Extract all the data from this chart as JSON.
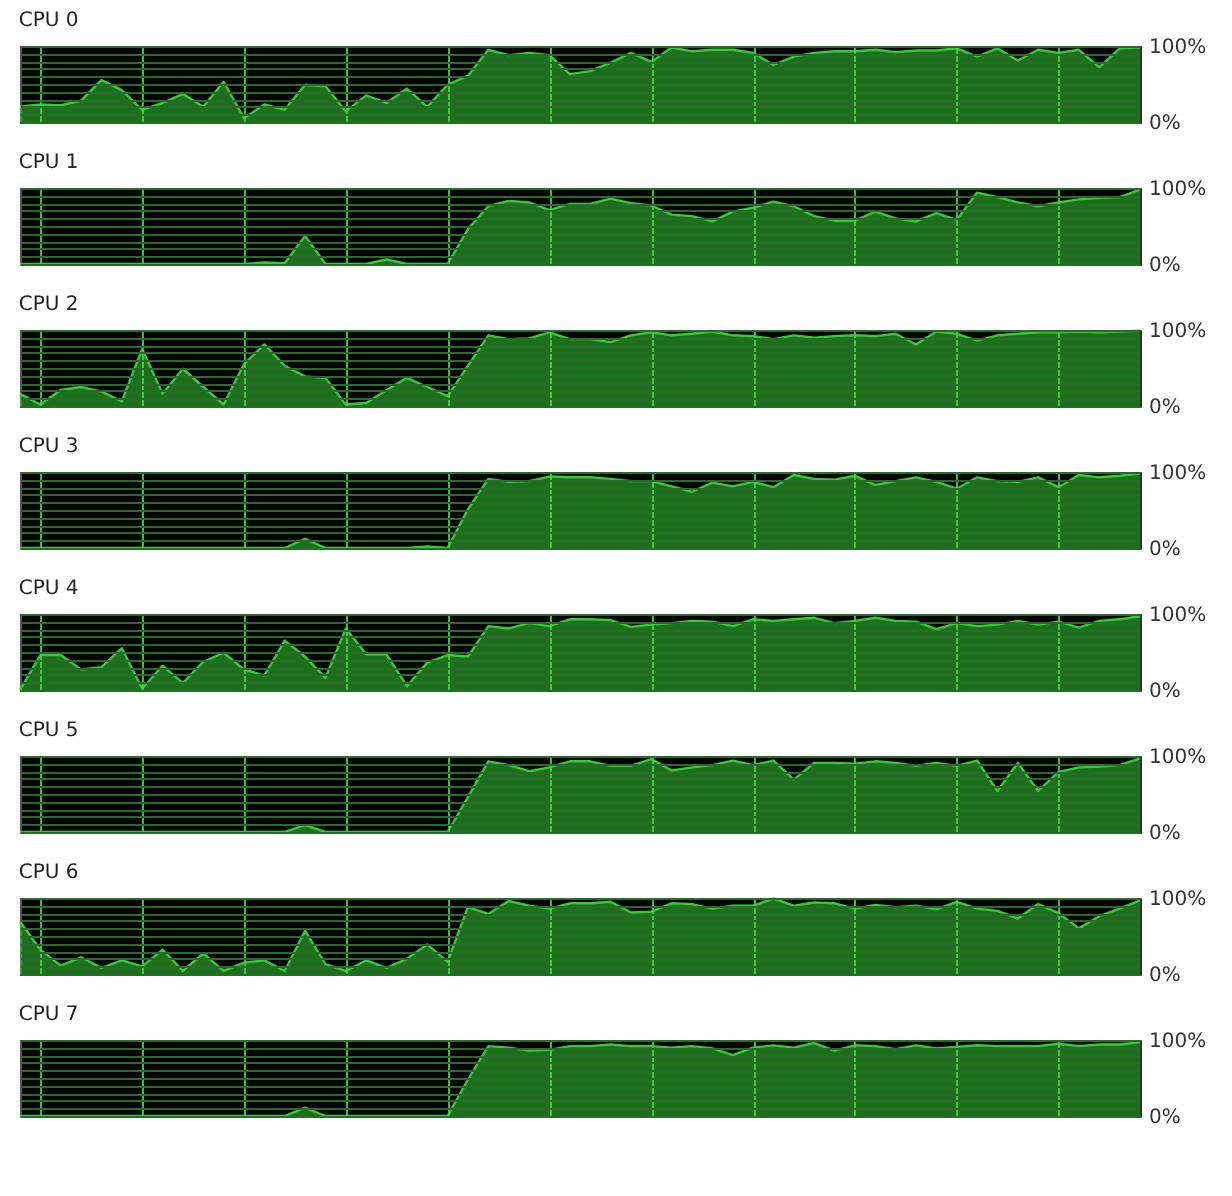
{
  "chart_data": [
    {
      "type": "area",
      "title": "CPU 0",
      "categories": [
        null,
        null,
        null,
        null,
        null,
        null,
        null,
        null,
        null,
        null,
        null,
        null,
        null,
        null,
        null,
        null,
        null,
        null,
        null,
        null,
        null,
        null,
        null,
        null,
        null,
        null,
        null,
        null,
        null,
        null,
        null,
        null,
        null,
        null,
        null,
        null,
        null,
        null,
        null,
        null,
        null,
        null,
        null,
        null,
        null,
        null,
        null,
        null,
        null,
        null,
        null,
        null,
        null,
        null,
        null,
        null
      ],
      "series": [
        {
          "color": "#33cc33",
          "values": [
            20,
            23,
            22,
            28,
            55,
            42,
            16,
            25,
            37,
            20,
            53,
            5,
            23,
            16,
            49,
            47,
            14,
            35,
            25,
            44,
            20,
            49,
            61,
            95,
            88,
            91,
            88,
            63,
            67,
            78,
            91,
            79,
            98,
            93,
            95,
            95,
            91,
            75,
            86,
            91,
            93,
            93,
            95,
            92,
            94,
            94,
            97,
            86,
            97,
            81,
            95,
            91,
            95,
            72,
            97,
            98
          ]
        }
      ],
      "ylim": [
        0,
        100
      ],
      "yticks": [
        {
          "value": 0,
          "label": "0%"
        },
        {
          "value": 10,
          "label": null
        },
        {
          "value": 20,
          "label": null
        },
        {
          "value": 30,
          "label": null
        },
        {
          "value": 40,
          "label": null
        },
        {
          "value": 50,
          "label": null
        },
        {
          "value": 60,
          "label": null
        },
        {
          "value": 70,
          "label": null
        },
        {
          "value": 80,
          "label": null
        },
        {
          "value": 90,
          "label": null
        },
        {
          "value": 100,
          "label": "100%"
        }
      ],
      "grid": true,
      "tick_labels": "y"
    },
    {
      "type": "area",
      "title": "CPU 1",
      "categories": [
        null,
        null,
        null,
        null,
        null,
        null,
        null,
        null,
        null,
        null,
        null,
        null,
        null,
        null,
        null,
        null,
        null,
        null,
        null,
        null,
        null,
        null,
        null,
        null,
        null,
        null,
        null,
        null,
        null,
        null,
        null,
        null,
        null,
        null,
        null,
        null,
        null,
        null,
        null,
        null,
        null,
        null,
        null,
        null,
        null,
        null,
        null,
        null,
        null,
        null,
        null,
        null,
        null,
        null,
        null,
        null
      ],
      "series": [
        {
          "color": "#33cc33",
          "values": [
            0,
            0,
            0,
            0,
            0,
            0,
            0,
            0,
            0,
            0,
            0,
            0,
            2,
            1,
            37,
            0,
            0,
            0,
            6,
            0,
            0,
            0,
            46,
            76,
            83,
            81,
            71,
            79,
            79,
            86,
            80,
            77,
            65,
            63,
            56,
            69,
            74,
            82,
            76,
            63,
            57,
            57,
            69,
            60,
            56,
            67,
            58,
            94,
            88,
            81,
            76,
            81,
            85,
            87,
            88,
            98
          ]
        }
      ],
      "ylim": [
        0,
        100
      ],
      "yticks": [
        {
          "value": 0,
          "label": "0%"
        },
        {
          "value": 10,
          "label": null
        },
        {
          "value": 20,
          "label": null
        },
        {
          "value": 30,
          "label": null
        },
        {
          "value": 40,
          "label": null
        },
        {
          "value": 50,
          "label": null
        },
        {
          "value": 60,
          "label": null
        },
        {
          "value": 70,
          "label": null
        },
        {
          "value": 80,
          "label": null
        },
        {
          "value": 90,
          "label": null
        },
        {
          "value": 100,
          "label": "100%"
        }
      ],
      "grid": true,
      "tick_labels": "y"
    },
    {
      "type": "area",
      "title": "CPU 2",
      "categories": [
        null,
        null,
        null,
        null,
        null,
        null,
        null,
        null,
        null,
        null,
        null,
        null,
        null,
        null,
        null,
        null,
        null,
        null,
        null,
        null,
        null,
        null,
        null,
        null,
        null,
        null,
        null,
        null,
        null,
        null,
        null,
        null,
        null,
        null,
        null,
        null,
        null,
        null,
        null,
        null,
        null,
        null,
        null,
        null,
        null,
        null,
        null,
        null,
        null,
        null,
        null,
        null,
        null,
        null,
        null,
        null
      ],
      "series": [
        {
          "color": "#33cc33",
          "values": [
            16,
            2,
            21,
            25,
            19,
            6,
            75,
            16,
            49,
            25,
            2,
            55,
            81,
            53,
            39,
            37,
            2,
            4,
            21,
            37,
            25,
            13,
            53,
            93,
            88,
            89,
            97,
            88,
            88,
            84,
            93,
            97,
            93,
            95,
            98,
            93,
            92,
            88,
            93,
            90,
            92,
            93,
            92,
            95,
            81,
            98,
            95,
            86,
            93,
            95,
            97,
            97,
            98,
            97,
            98,
            99
          ]
        }
      ],
      "ylim": [
        0,
        100
      ],
      "yticks": [
        {
          "value": 0,
          "label": "0%"
        },
        {
          "value": 10,
          "label": null
        },
        {
          "value": 20,
          "label": null
        },
        {
          "value": 30,
          "label": null
        },
        {
          "value": 40,
          "label": null
        },
        {
          "value": 50,
          "label": null
        },
        {
          "value": 60,
          "label": null
        },
        {
          "value": 70,
          "label": null
        },
        {
          "value": 80,
          "label": null
        },
        {
          "value": 90,
          "label": null
        },
        {
          "value": 100,
          "label": "100%"
        }
      ],
      "grid": true,
      "tick_labels": "y"
    },
    {
      "type": "area",
      "title": "CPU 3",
      "categories": [
        null,
        null,
        null,
        null,
        null,
        null,
        null,
        null,
        null,
        null,
        null,
        null,
        null,
        null,
        null,
        null,
        null,
        null,
        null,
        null,
        null,
        null,
        null,
        null,
        null,
        null,
        null,
        null,
        null,
        null,
        null,
        null,
        null,
        null,
        null,
        null,
        null,
        null,
        null,
        null,
        null,
        null,
        null,
        null,
        null,
        null,
        null,
        null,
        null,
        null,
        null,
        null,
        null,
        null,
        null,
        null
      ],
      "series": [
        {
          "color": "#33cc33",
          "values": [
            0,
            0,
            0,
            0,
            0,
            0,
            0,
            0,
            0,
            0,
            0,
            0,
            0,
            0,
            12,
            0,
            0,
            0,
            0,
            0,
            2,
            0,
            51,
            91,
            87,
            88,
            94,
            93,
            93,
            91,
            88,
            88,
            81,
            74,
            86,
            81,
            87,
            80,
            96,
            91,
            90,
            95,
            83,
            88,
            93,
            87,
            78,
            93,
            88,
            87,
            93,
            80,
            96,
            93,
            95,
            98
          ]
        }
      ],
      "ylim": [
        0,
        100
      ],
      "yticks": [
        {
          "value": 0,
          "label": "0%"
        },
        {
          "value": 10,
          "label": null
        },
        {
          "value": 20,
          "label": null
        },
        {
          "value": 30,
          "label": null
        },
        {
          "value": 40,
          "label": null
        },
        {
          "value": 50,
          "label": null
        },
        {
          "value": 60,
          "label": null
        },
        {
          "value": 70,
          "label": null
        },
        {
          "value": 80,
          "label": null
        },
        {
          "value": 90,
          "label": null
        },
        {
          "value": 100,
          "label": "100%"
        }
      ],
      "grid": true,
      "tick_labels": "y"
    },
    {
      "type": "area",
      "title": "CPU 4",
      "categories": [
        null,
        null,
        null,
        null,
        null,
        null,
        null,
        null,
        null,
        null,
        null,
        null,
        null,
        null,
        null,
        null,
        null,
        null,
        null,
        null,
        null,
        null,
        null,
        null,
        null,
        null,
        null,
        null,
        null,
        null,
        null,
        null,
        null,
        null,
        null,
        null,
        null,
        null,
        null,
        null,
        null,
        null,
        null,
        null,
        null,
        null,
        null,
        null,
        null,
        null,
        null,
        null,
        null,
        null,
        null,
        null
      ],
      "series": [
        {
          "color": "#33cc33",
          "values": [
            0,
            46,
            46,
            27,
            30,
            55,
            2,
            32,
            9,
            37,
            49,
            27,
            19,
            65,
            44,
            16,
            81,
            47,
            47,
            5,
            36,
            46,
            44,
            84,
            81,
            88,
            84,
            93,
            93,
            92,
            83,
            86,
            88,
            91,
            90,
            84,
            93,
            91,
            93,
            95,
            88,
            91,
            95,
            91,
            90,
            80,
            88,
            84,
            86,
            91,
            86,
            90,
            82,
            91,
            93,
            97
          ]
        }
      ],
      "ylim": [
        0,
        100
      ],
      "yticks": [
        {
          "value": 0,
          "label": "0%"
        },
        {
          "value": 10,
          "label": null
        },
        {
          "value": 20,
          "label": null
        },
        {
          "value": 30,
          "label": null
        },
        {
          "value": 40,
          "label": null
        },
        {
          "value": 50,
          "label": null
        },
        {
          "value": 60,
          "label": null
        },
        {
          "value": 70,
          "label": null
        },
        {
          "value": 80,
          "label": null
        },
        {
          "value": 90,
          "label": null
        },
        {
          "value": 100,
          "label": "100%"
        }
      ],
      "grid": true,
      "tick_labels": "y"
    },
    {
      "type": "area",
      "title": "CPU 5",
      "categories": [
        null,
        null,
        null,
        null,
        null,
        null,
        null,
        null,
        null,
        null,
        null,
        null,
        null,
        null,
        null,
        null,
        null,
        null,
        null,
        null,
        null,
        null,
        null,
        null,
        null,
        null,
        null,
        null,
        null,
        null,
        null,
        null,
        null,
        null,
        null,
        null,
        null,
        null,
        null,
        null,
        null,
        null,
        null,
        null,
        null,
        null,
        null,
        null,
        null,
        null,
        null,
        null,
        null,
        null,
        null,
        null
      ],
      "series": [
        {
          "color": "#33cc33",
          "values": [
            0,
            0,
            0,
            0,
            0,
            0,
            0,
            0,
            0,
            0,
            0,
            0,
            0,
            0,
            9,
            0,
            0,
            0,
            0,
            0,
            0,
            0,
            46,
            93,
            88,
            80,
            85,
            93,
            93,
            87,
            87,
            96,
            81,
            85,
            88,
            94,
            88,
            94,
            69,
            91,
            91,
            90,
            93,
            91,
            87,
            91,
            87,
            94,
            54,
            91,
            54,
            79,
            85,
            86,
            88,
            97
          ]
        }
      ],
      "ylim": [
        0,
        100
      ],
      "yticks": [
        {
          "value": 0,
          "label": "0%"
        },
        {
          "value": 10,
          "label": null
        },
        {
          "value": 20,
          "label": null
        },
        {
          "value": 30,
          "label": null
        },
        {
          "value": 40,
          "label": null
        },
        {
          "value": 50,
          "label": null
        },
        {
          "value": 60,
          "label": null
        },
        {
          "value": 70,
          "label": null
        },
        {
          "value": 80,
          "label": null
        },
        {
          "value": 90,
          "label": null
        },
        {
          "value": 100,
          "label": "100%"
        }
      ],
      "grid": true,
      "tick_labels": "y"
    },
    {
      "type": "area",
      "title": "CPU 6",
      "categories": [
        null,
        null,
        null,
        null,
        null,
        null,
        null,
        null,
        null,
        null,
        null,
        null,
        null,
        null,
        null,
        null,
        null,
        null,
        null,
        null,
        null,
        null,
        null,
        null,
        null,
        null,
        null,
        null,
        null,
        null,
        null,
        null,
        null,
        null,
        null,
        null,
        null,
        null,
        null,
        null,
        null,
        null,
        null,
        null,
        null,
        null,
        null,
        null,
        null,
        null,
        null,
        null,
        null,
        null,
        null,
        null
      ],
      "series": [
        {
          "color": "#33cc33",
          "values": [
            69,
            32,
            11,
            22,
            8,
            18,
            10,
            32,
            4,
            27,
            4,
            15,
            18,
            4,
            57,
            13,
            4,
            18,
            8,
            20,
            39,
            16,
            88,
            79,
            96,
            90,
            86,
            93,
            93,
            95,
            81,
            82,
            93,
            92,
            86,
            90,
            90,
            99,
            90,
            94,
            93,
            86,
            91,
            88,
            90,
            85,
            95,
            86,
            83,
            73,
            92,
            80,
            60,
            76,
            86,
            97
          ]
        }
      ],
      "ylim": [
        0,
        100
      ],
      "yticks": [
        {
          "value": 0,
          "label": "0%"
        },
        {
          "value": 10,
          "label": null
        },
        {
          "value": 20,
          "label": null
        },
        {
          "value": 30,
          "label": null
        },
        {
          "value": 40,
          "label": null
        },
        {
          "value": 50,
          "label": null
        },
        {
          "value": 60,
          "label": null
        },
        {
          "value": 70,
          "label": null
        },
        {
          "value": 80,
          "label": null
        },
        {
          "value": 90,
          "label": null
        },
        {
          "value": 100,
          "label": "100%"
        }
      ],
      "grid": true,
      "tick_labels": "y"
    },
    {
      "type": "area",
      "title": "CPU 7",
      "categories": [
        null,
        null,
        null,
        null,
        null,
        null,
        null,
        null,
        null,
        null,
        null,
        null,
        null,
        null,
        null,
        null,
        null,
        null,
        null,
        null,
        null,
        null,
        null,
        null,
        null,
        null,
        null,
        null,
        null,
        null,
        null,
        null,
        null,
        null,
        null,
        null,
        null,
        null,
        null,
        null,
        null,
        null,
        null,
        null,
        null,
        null,
        null,
        null,
        null,
        null,
        null,
        null,
        null,
        null,
        null,
        null
      ],
      "series": [
        {
          "color": "#33cc33",
          "values": [
            0,
            0,
            0,
            0,
            0,
            0,
            0,
            0,
            0,
            0,
            0,
            0,
            0,
            0,
            11,
            0,
            0,
            0,
            0,
            0,
            0,
            0,
            48,
            92,
            90,
            86,
            87,
            92,
            92,
            94,
            92,
            92,
            90,
            92,
            89,
            80,
            90,
            93,
            90,
            96,
            86,
            93,
            92,
            88,
            93,
            89,
            91,
            93,
            92,
            92,
            92,
            95,
            92,
            94,
            94,
            97
          ]
        }
      ],
      "ylim": [
        0,
        100
      ],
      "yticks": [
        {
          "value": 0,
          "label": "0%"
        },
        {
          "value": 10,
          "label": null
        },
        {
          "value": 20,
          "label": null
        },
        {
          "value": 30,
          "label": null
        },
        {
          "value": 40,
          "label": null
        },
        {
          "value": 50,
          "label": null
        },
        {
          "value": 60,
          "label": null
        },
        {
          "value": 70,
          "label": null
        },
        {
          "value": 80,
          "label": null
        },
        {
          "value": 90,
          "label": null
        },
        {
          "value": 100,
          "label": "100%"
        }
      ],
      "grid": true,
      "tick_labels": "y"
    }
  ]
}
